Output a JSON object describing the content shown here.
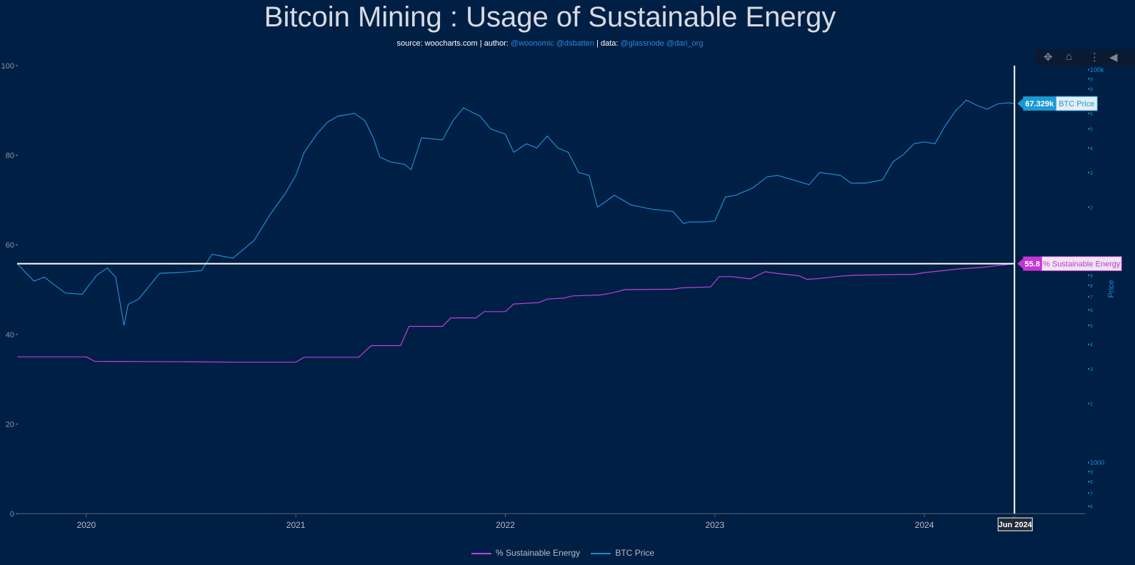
{
  "header": {
    "title": "Bitcoin Mining : Usage of Sustainable Energy",
    "source_prefix": "source: woocharts.com | author: ",
    "author_links": "@woonomic @dsbatten",
    "data_prefix": " | data: ",
    "data_links": "@glassnode @dari_org"
  },
  "modebar": {
    "pan": "✥",
    "home": "⌂",
    "spikes": "⋮",
    "compare": "◀"
  },
  "colors": {
    "background": "#001f44",
    "energy": "#c13fe0",
    "price": "#1b8fd2",
    "crosshair": "#ffffff",
    "tooltip_price_bg": "#1c9bd3",
    "tooltip_energy_bg": "#c536d4"
  },
  "chart_data": {
    "type": "line",
    "title": "Bitcoin Mining : Usage of Sustainable Energy",
    "x_range": [
      2019.67,
      2024.77
    ],
    "x_ticks": [
      {
        "value": 2020,
        "label": "2020"
      },
      {
        "value": 2021,
        "label": "2021"
      },
      {
        "value": 2022,
        "label": "2022"
      },
      {
        "value": 2023,
        "label": "2023"
      },
      {
        "value": 2024,
        "label": "2024"
      }
    ],
    "y_left": {
      "range": [
        0,
        100
      ],
      "ticks": [
        "0",
        "20",
        "40",
        "60",
        "80",
        "100"
      ]
    },
    "y_right": {
      "title": "Price",
      "type": "log",
      "range": [
        550,
        105000
      ],
      "major_labels": [
        {
          "value": 1000,
          "label": "1000"
        },
        {
          "value": 100000,
          "label": "100k"
        }
      ]
    },
    "series": [
      {
        "name": "% Sustainable Energy",
        "axis": "left",
        "x": [
          2019.67,
          2020.0,
          2020.04,
          2020.5,
          2020.7,
          2021.0,
          2021.04,
          2021.3,
          2021.36,
          2021.5,
          2021.54,
          2021.7,
          2021.74,
          2021.86,
          2021.9,
          2022.0,
          2022.04,
          2022.16,
          2022.2,
          2022.28,
          2022.32,
          2022.45,
          2022.49,
          2022.53,
          2022.57,
          2022.8,
          2022.84,
          2022.98,
          2023.02,
          2023.08,
          2023.17,
          2023.24,
          2023.3,
          2023.4,
          2023.44,
          2023.5,
          2023.6,
          2023.66,
          2023.9,
          2023.95,
          2024.0,
          2024.04,
          2024.12,
          2024.16,
          2024.28,
          2024.32,
          2024.43
        ],
        "y": [
          35.0,
          35.0,
          34.0,
          33.9,
          33.8,
          33.8,
          34.9,
          34.9,
          37.5,
          37.5,
          41.8,
          41.8,
          43.7,
          43.7,
          45.1,
          45.1,
          46.8,
          47.1,
          47.9,
          48.1,
          48.6,
          48.8,
          49.1,
          49.5,
          50.0,
          50.1,
          50.4,
          50.6,
          52.9,
          52.9,
          52.4,
          54.0,
          53.6,
          53.1,
          52.3,
          52.5,
          53.0,
          53.2,
          53.4,
          53.4,
          53.8,
          54.0,
          54.4,
          54.6,
          55.0,
          55.2,
          55.8
        ]
      },
      {
        "name": "BTC Price",
        "axis": "right",
        "x": [
          2019.67,
          2019.75,
          2019.8,
          2019.9,
          2019.98,
          2020.05,
          2020.1,
          2020.14,
          2020.18,
          2020.2,
          2020.25,
          2020.35,
          2020.45,
          2020.55,
          2020.6,
          2020.7,
          2020.8,
          2020.88,
          2020.95,
          2021.0,
          2021.04,
          2021.1,
          2021.15,
          2021.2,
          2021.28,
          2021.33,
          2021.37,
          2021.4,
          2021.45,
          2021.52,
          2021.55,
          2021.6,
          2021.7,
          2021.75,
          2021.8,
          2021.88,
          2021.93,
          2022.0,
          2022.04,
          2022.1,
          2022.15,
          2022.2,
          2022.25,
          2022.3,
          2022.35,
          2022.4,
          2022.44,
          2022.47,
          2022.52,
          2022.6,
          2022.7,
          2022.8,
          2022.85,
          2022.88,
          2022.95,
          2023.0,
          2023.05,
          2023.1,
          2023.18,
          2023.25,
          2023.3,
          2023.4,
          2023.45,
          2023.5,
          2023.6,
          2023.65,
          2023.72,
          2023.8,
          2023.85,
          2023.9,
          2023.95,
          2024.0,
          2024.05,
          2024.1,
          2024.15,
          2024.2,
          2024.25,
          2024.3,
          2024.35,
          2024.4,
          2024.43
        ],
        "y": [
          10300,
          8400,
          8800,
          7300,
          7200,
          9000,
          9800,
          8800,
          5000,
          6400,
          6800,
          9200,
          9300,
          9500,
          11500,
          11000,
          13500,
          18500,
          23500,
          29000,
          38000,
          47000,
          54000,
          58000,
          60000,
          55000,
          45000,
          36000,
          34000,
          33000,
          31000,
          45000,
          44000,
          55000,
          64000,
          58000,
          50000,
          47000,
          38000,
          42000,
          40000,
          46000,
          40000,
          38000,
          30000,
          29000,
          20000,
          21000,
          23000,
          20500,
          19500,
          19000,
          16500,
          16800,
          16800,
          17000,
          22500,
          23000,
          25000,
          28500,
          29000,
          27000,
          26000,
          30000,
          29000,
          26500,
          26500,
          27500,
          34000,
          37000,
          42000,
          43000,
          42000,
          52000,
          62000,
          70000,
          66000,
          63000,
          67000,
          68000,
          67329
        ]
      }
    ],
    "hover": {
      "x_label": "Jun 2024",
      "price_value": "67.329k",
      "price_name": "BTC Price",
      "energy_value": "55.8",
      "energy_name": "% Sustainable Energy"
    },
    "legend": {
      "position": "bottom-center"
    }
  }
}
